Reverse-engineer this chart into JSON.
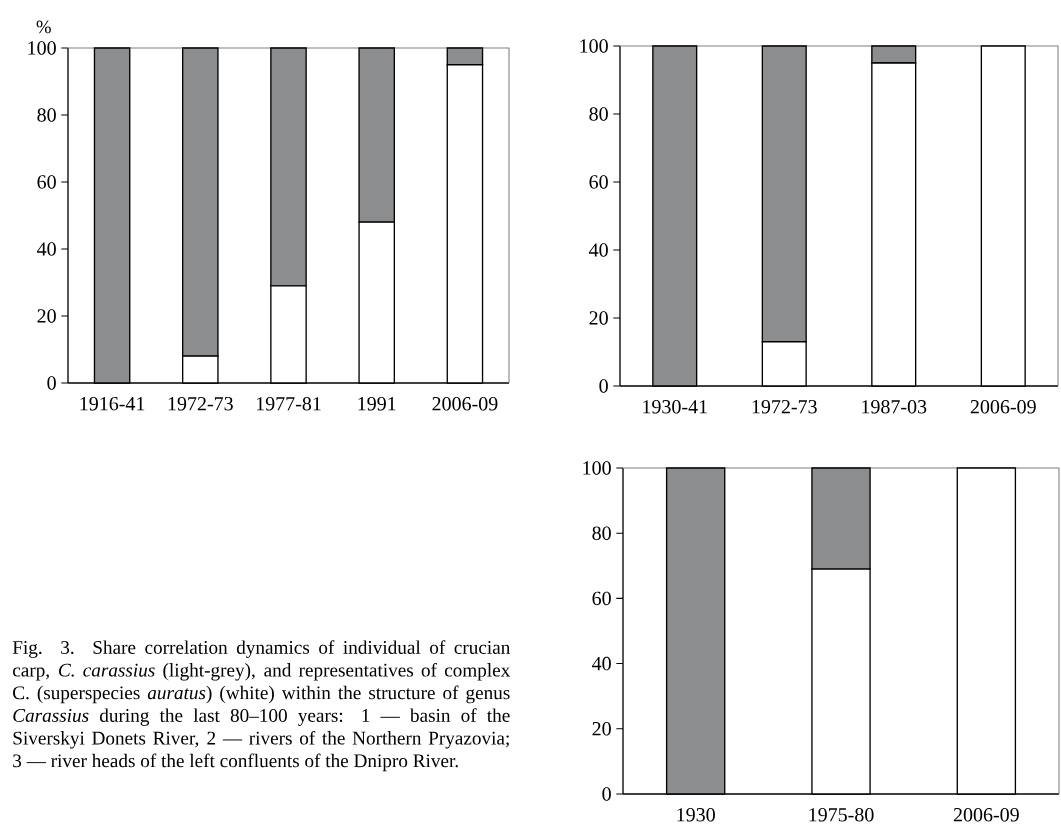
{
  "chart_data": [
    {
      "type": "bar",
      "stacked": true,
      "ylabel": "%",
      "categories": [
        "1916-41",
        "1972-73",
        "1977-81",
        "1991",
        "2006-09"
      ],
      "ylim": [
        0,
        100
      ],
      "yticks": [
        0,
        20,
        40,
        60,
        80,
        100
      ],
      "series": [
        {
          "color": "#ffffff",
          "values": [
            0,
            8,
            29,
            48,
            95
          ]
        },
        {
          "color": "#8c8d8f",
          "values": [
            100,
            92,
            71,
            52,
            5
          ]
        }
      ]
    },
    {
      "type": "bar",
      "stacked": true,
      "categories": [
        "1930-41",
        "1972-73",
        "1987-03",
        "2006-09"
      ],
      "ylim": [
        0,
        100
      ],
      "yticks": [
        0,
        20,
        40,
        60,
        80,
        100
      ],
      "series": [
        {
          "color": "#ffffff",
          "values": [
            0,
            13,
            95,
            100
          ]
        },
        {
          "color": "#8c8d8f",
          "values": [
            100,
            87,
            5,
            0
          ]
        }
      ]
    },
    {
      "type": "bar",
      "stacked": true,
      "categories": [
        "1930",
        "1975-80",
        "2006-09"
      ],
      "ylim": [
        0,
        100
      ],
      "yticks": [
        0,
        20,
        40,
        60,
        80,
        100
      ],
      "series": [
        {
          "color": "#ffffff",
          "values": [
            0,
            69,
            100
          ]
        },
        {
          "color": "#8c8d8f",
          "values": [
            100,
            31,
            0
          ]
        }
      ]
    },
    {
      "type": "other",
      "annotations": [
        "Fig. 3. Share correlation dynamics of individual of crucian carp, *C. carassius* (light-grey), and representatives of complex C. (superspecies *auratus*) (white) within the structure of genus *Carassius* during the last 80–100 years: 1 — basin of the Siverskyi Donets River, 2 — rivers of the Northern Pryazovia; 3 — river heads of the left confluents of the Dnipro River."
      ]
    }
  ]
}
